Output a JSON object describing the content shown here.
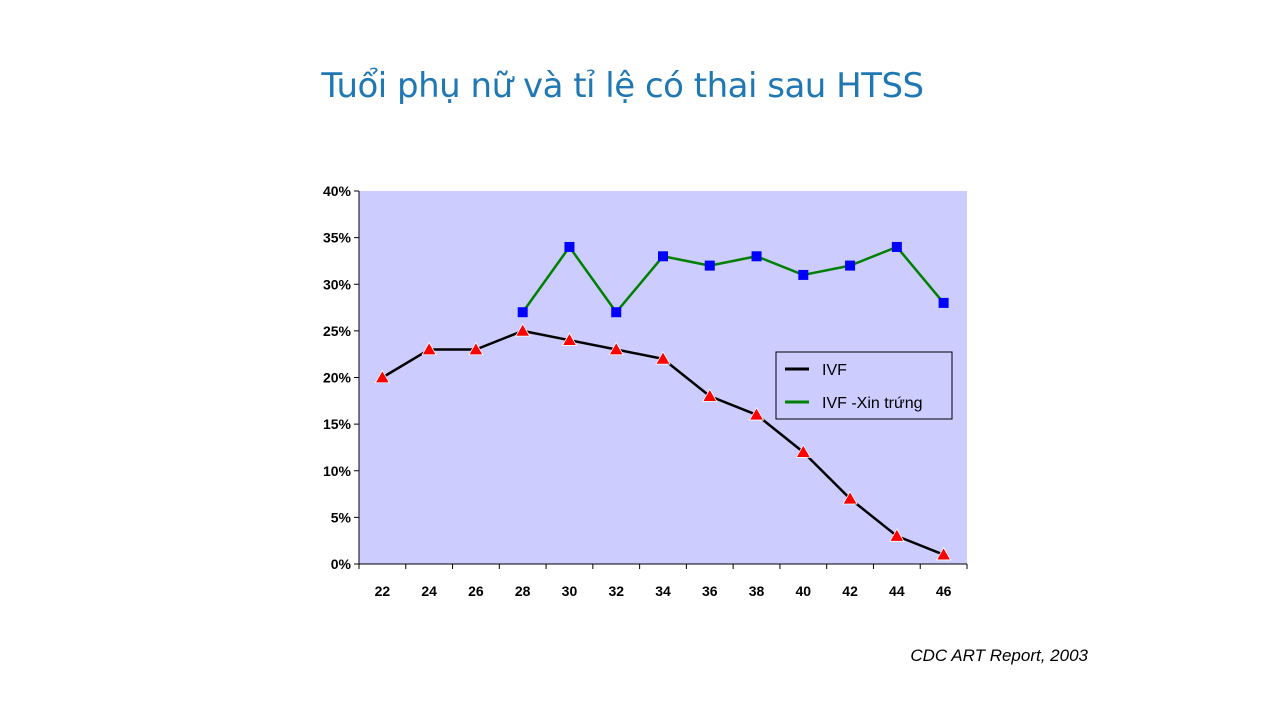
{
  "slide": {
    "title": "Tuổi phụ nữ và tỉ lệ có thai sau HTSS",
    "source": "CDC ART Report, 2003"
  },
  "chart_data": {
    "type": "line",
    "title": "",
    "xlabel": "",
    "ylabel": "",
    "x": [
      22,
      24,
      26,
      28,
      30,
      32,
      34,
      36,
      38,
      40,
      42,
      44,
      46
    ],
    "ylim": [
      0,
      40
    ],
    "yticks": [
      0,
      5,
      10,
      15,
      20,
      25,
      30,
      35,
      40
    ],
    "ytick_labels": [
      "0%",
      "5%",
      "10%",
      "15%",
      "20%",
      "25%",
      "30%",
      "35%",
      "40%"
    ],
    "grid": false,
    "legend_position": "right",
    "plot_background": "#ccccff",
    "series": [
      {
        "name": "IVF",
        "color": "#000000",
        "marker": "triangle",
        "marker_color": "#ff0000",
        "values": [
          20,
          23,
          23,
          25,
          24,
          23,
          22,
          18,
          16,
          12,
          7,
          3,
          1
        ]
      },
      {
        "name": "IVF -Xin trứng",
        "color": "#008000",
        "marker": "square",
        "marker_color": "#0000ff",
        "values": [
          null,
          null,
          null,
          27,
          34,
          27,
          33,
          32,
          33,
          31,
          32,
          34,
          28
        ]
      }
    ]
  }
}
